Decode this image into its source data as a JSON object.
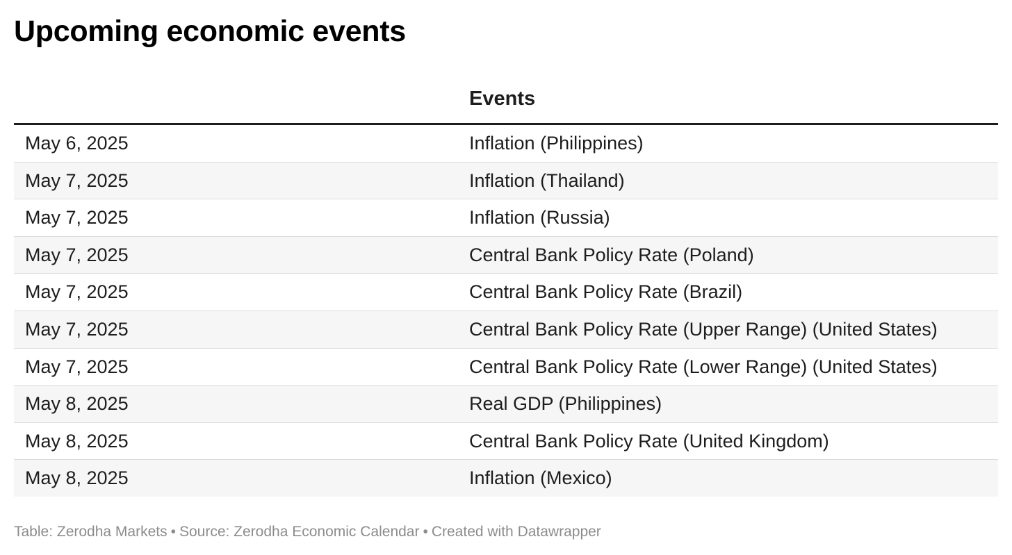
{
  "title": "Upcoming economic events",
  "table": {
    "headers": [
      "",
      "Events"
    ],
    "rows": [
      {
        "date": "May 6, 2025",
        "event": "Inflation (Philippines)"
      },
      {
        "date": "May 7, 2025",
        "event": "Inflation (Thailand)"
      },
      {
        "date": "May 7, 2025",
        "event": "Inflation (Russia)"
      },
      {
        "date": "May 7, 2025",
        "event": "Central Bank Policy Rate (Poland)"
      },
      {
        "date": "May 7, 2025",
        "event": "Central Bank Policy Rate (Brazil)"
      },
      {
        "date": "May 7, 2025",
        "event": "Central Bank Policy Rate (Upper Range) (United States)"
      },
      {
        "date": "May 7, 2025",
        "event": "Central Bank Policy Rate (Lower Range) (United States)"
      },
      {
        "date": "May 8, 2025",
        "event": "Real GDP (Philippines)"
      },
      {
        "date": "May 8, 2025",
        "event": "Central Bank Policy Rate (United Kingdom)"
      },
      {
        "date": "May 8, 2025",
        "event": "Inflation (Mexico)"
      }
    ]
  },
  "footer": {
    "table_credit": "Table: Zerodha Markets",
    "source": "Source: Zerodha Economic Calendar",
    "created_with": "Created with Datawrapper",
    "separator": "•"
  },
  "colors": {
    "text": "#1d1d1d",
    "title": "#000000",
    "row_alt_bg": "#f6f6f6",
    "row_border": "#dcdcdc",
    "header_rule": "#1d1d1d",
    "footer_text": "#8c8c8c"
  }
}
